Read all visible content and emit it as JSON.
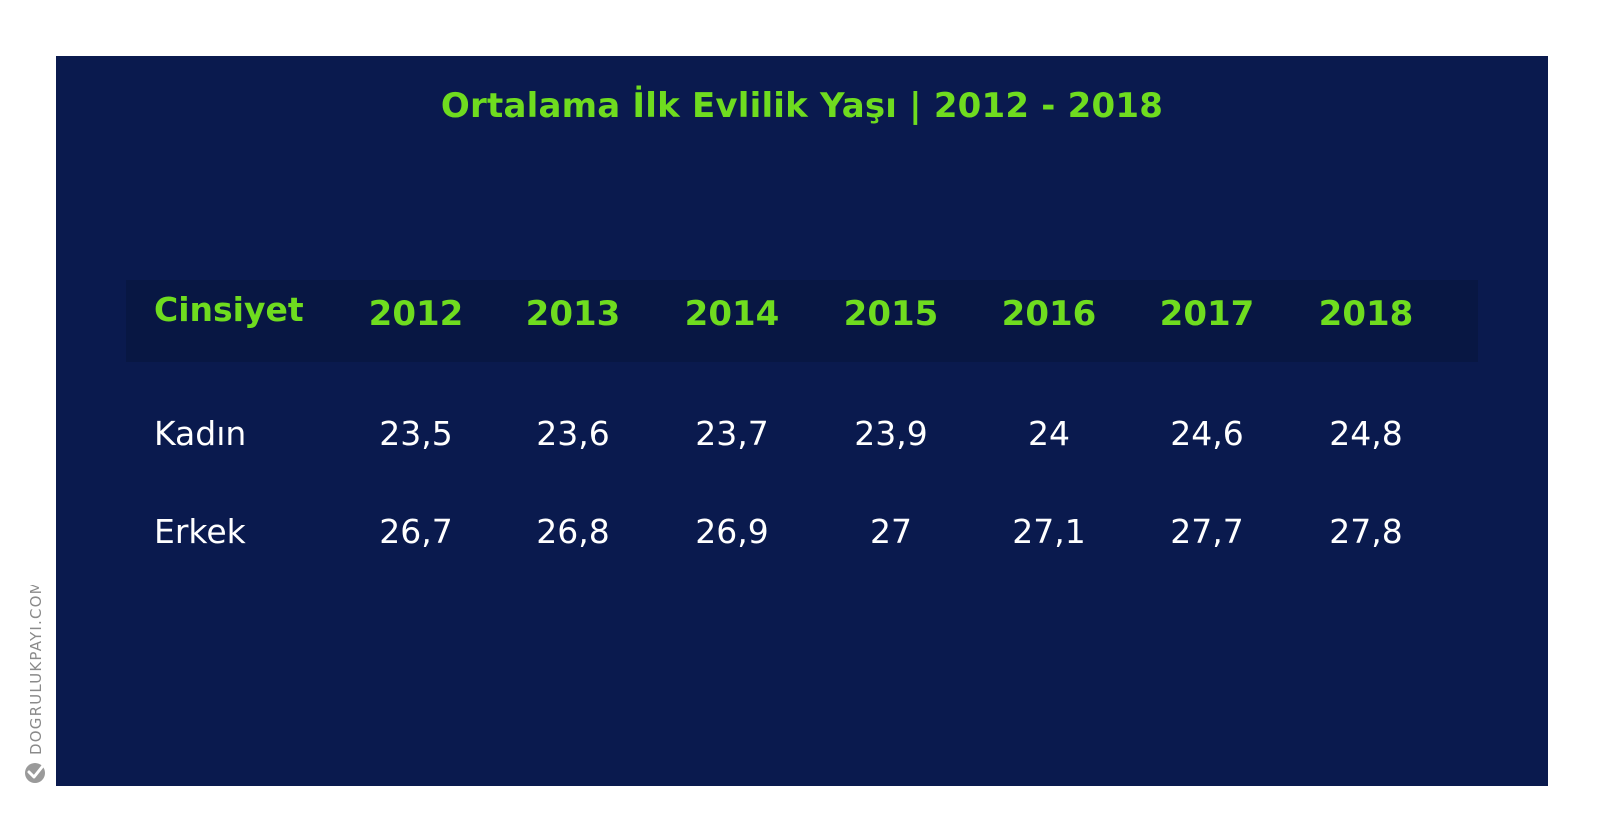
{
  "chart_data": {
    "type": "table",
    "title": "Ortalama İlk Evlilik Yaşı | 2012 - 2018",
    "header_label": "Cinsiyet",
    "columns": [
      "2012",
      "2013",
      "2014",
      "2015",
      "2016",
      "2017",
      "2018"
    ],
    "rows": [
      {
        "name": "Kadın",
        "values": [
          "23,5",
          "23,6",
          "23,7",
          "23,9",
          "24",
          "24,6",
          "24,8"
        ]
      },
      {
        "name": "Erkek",
        "values": [
          "26,7",
          "26,8",
          "26,9",
          "27",
          "27,1",
          "27,7",
          "27,8"
        ]
      }
    ]
  },
  "watermark": {
    "text": "DOGRULUKPAYI.COM",
    "icon": "doğruluk-payı-logo"
  },
  "colors": {
    "background": "#0a1a4e",
    "header_band": "#081743",
    "accent": "#6fdc1f",
    "text": "#ffffff",
    "watermark": "#8a8a8a"
  }
}
